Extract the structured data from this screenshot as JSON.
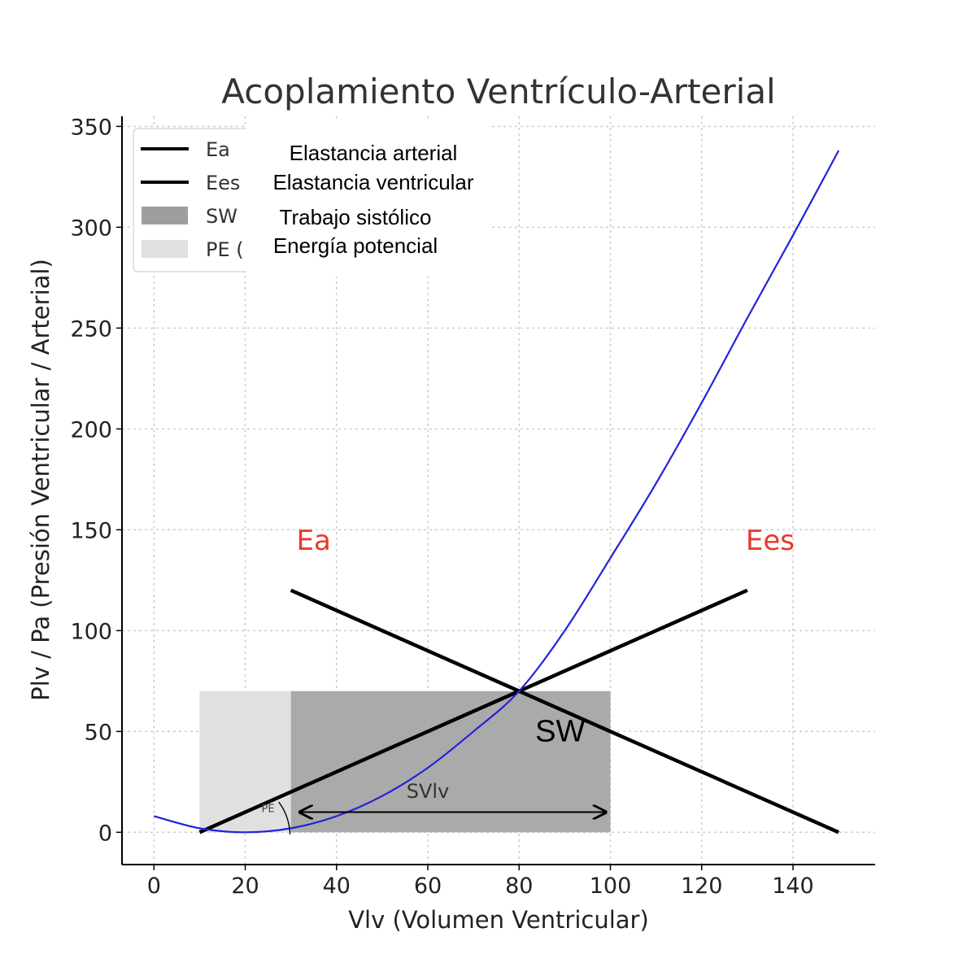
{
  "chart_data": {
    "type": "line",
    "title": "Acoplamiento Ventrículo-Arterial",
    "xlabel": "Vlv (Volumen Ventricular)",
    "ylabel": "Plv / Pa (Presión Ventricular / Arterial)",
    "xlim": [
      -7,
      158
    ],
    "ylim": [
      -16,
      355
    ],
    "xticks": [
      0,
      20,
      40,
      60,
      80,
      100,
      120,
      140
    ],
    "yticks": [
      0,
      50,
      100,
      150,
      200,
      250,
      300,
      350
    ],
    "grid": true,
    "legend": {
      "placement": "top-left",
      "entries": [
        {
          "code": "Ea",
          "desc": "Elastancia arterial",
          "kind": "line",
          "color": "#000000"
        },
        {
          "code": "Ees",
          "desc": "Elastancia ventricular",
          "kind": "line",
          "color": "#000000"
        },
        {
          "code": "SW",
          "desc": "Trabajo sistólico",
          "kind": "patch",
          "color": "#9e9e9e"
        },
        {
          "code": "PE (",
          "desc": "Energía potencial",
          "kind": "patch",
          "color": "#e0e0e0"
        }
      ]
    },
    "series": [
      {
        "kind": "line",
        "color": "#000000",
        "x": [
          30,
          150
        ],
        "y": [
          120,
          0
        ]
      },
      {
        "kind": "line",
        "color": "#000000",
        "x": [
          10,
          130
        ],
        "y": [
          0,
          120
        ]
      },
      {
        "kind": "curve",
        "color": "#2222dd",
        "x": [
          0,
          10,
          20,
          30,
          40,
          50,
          60,
          70,
          80,
          90,
          100,
          110,
          120,
          130,
          140,
          150
        ],
        "y": [
          8,
          2,
          0,
          2,
          8,
          18,
          32,
          50,
          70,
          100,
          136,
          173,
          213,
          255,
          296,
          338
        ]
      }
    ],
    "regions": [
      {
        "name": "PE",
        "x": [
          10,
          30
        ],
        "y": [
          0,
          70
        ],
        "color": "#e0e0e0"
      },
      {
        "name": "SW",
        "x": [
          30,
          100
        ],
        "y": [
          0,
          70
        ],
        "color": "#aaaaaa"
      }
    ],
    "annotations": [
      {
        "text": "Ea",
        "x": 35,
        "y": 140,
        "color": "#e8382f"
      },
      {
        "text": "Ees",
        "x": 135,
        "y": 140,
        "color": "#e8382f"
      },
      {
        "text": "SW",
        "x": 89,
        "y": 45,
        "color": "#000000"
      },
      {
        "text": "SVlv",
        "x": 60,
        "y": 17,
        "color": "#333333"
      },
      {
        "text": "PE",
        "x": 25,
        "y": 10,
        "color": "#444444"
      }
    ],
    "arrow": {
      "x": [
        32,
        99
      ],
      "y": 10
    }
  }
}
